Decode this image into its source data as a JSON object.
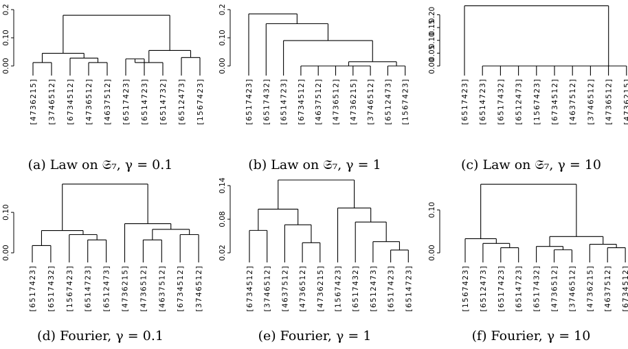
{
  "colors": {
    "red": "#c0141e",
    "green": "#22a020",
    "black": "#000000"
  },
  "chart_data": [
    {
      "type": "dendrogram",
      "caption": "(a) Law on 𝔖₇, γ = 0.1",
      "ylim": [
        0,
        0.2
      ],
      "yticks": [
        0.0,
        0.1,
        0.2
      ],
      "ytick_labels": [
        "0.00",
        "0.10",
        "0.2"
      ],
      "leaves": [
        "[4736215]",
        "[3746512]",
        "[6734512]",
        "[4736512]",
        "[4637512]",
        "[6517423]",
        "[6514723]",
        "[6514732]",
        "[6512473]",
        "[1567423]"
      ],
      "leaf_colors": [
        "red",
        "red",
        "red",
        "red",
        "red",
        "green",
        "green",
        "green",
        "green",
        "green"
      ],
      "merges": [
        [
          -1,
          -2,
          0.012
        ],
        [
          -4,
          -5,
          0.012
        ],
        [
          -3,
          2,
          0.028
        ],
        [
          1,
          3,
          0.045
        ],
        [
          -6,
          -7,
          0.025
        ],
        [
          -8,
          5,
          0.012
        ],
        [
          -9,
          -10,
          0.03
        ],
        [
          6,
          7,
          0.055
        ],
        [
          4,
          8,
          0.18
        ]
      ]
    },
    {
      "type": "dendrogram",
      "caption": "(b) Law on 𝔖₇, γ = 1",
      "ylim": [
        0,
        0.2
      ],
      "yticks": [
        0.0,
        0.1,
        0.2
      ],
      "ytick_labels": [
        "0.00",
        "0.10",
        "0.2"
      ],
      "leaves": [
        "[6517423]",
        "[6517432]",
        "[6514723]",
        "[6734512]",
        "[4637512]",
        "[4736512]",
        "[4736215]",
        "[3746512]",
        "[6512473]",
        "[1567423]"
      ],
      "leaf_colors": [
        "green",
        "green",
        "green",
        "red",
        "red",
        "red",
        "red",
        "red",
        "green",
        "green"
      ],
      "merges": [
        [
          -4,
          -5,
          0.0
        ],
        [
          -6,
          -7,
          0.0
        ],
        [
          1,
          2,
          0.0
        ],
        [
          -8,
          3,
          0.0
        ],
        [
          -9,
          -10,
          0.0
        ],
        [
          4,
          5,
          0.015
        ],
        [
          -3,
          6,
          0.09
        ],
        [
          -2,
          7,
          0.15
        ],
        [
          -1,
          8,
          0.185
        ]
      ]
    },
    {
      "type": "dendrogram",
      "caption": "(c) Law on 𝔖₇, γ = 10",
      "ylim": [
        0,
        0.22
      ],
      "yticks": [
        0.0,
        0.05,
        0.1,
        0.15,
        0.2
      ],
      "ytick_labels": [
        "0.00",
        "0.05",
        "0.10",
        "0.15",
        "0.20"
      ],
      "leaves": [
        "[6517423]",
        "[6514723]",
        "[6517432]",
        "[6512473]",
        "[1567423]",
        "[6734512]",
        "[4637512]",
        "[3746512]",
        "[4736512]",
        "[4736215]"
      ],
      "leaf_colors": [
        "green",
        "green",
        "green",
        "green",
        "green",
        "red",
        "red",
        "red",
        "red",
        "red"
      ],
      "merges": [
        [
          -2,
          -3,
          0.0
        ],
        [
          1,
          -4,
          0.0
        ],
        [
          2,
          -5,
          0.0
        ],
        [
          3,
          -6,
          0.0
        ],
        [
          4,
          -7,
          0.0
        ],
        [
          5,
          -8,
          0.0
        ],
        [
          6,
          -9,
          0.0
        ],
        [
          7,
          -10,
          0.0
        ],
        [
          -1,
          8,
          0.235
        ]
      ]
    },
    {
      "type": "dendrogram",
      "caption": "(d) Fourier, γ = 0.1",
      "ylim": [
        0,
        0.18
      ],
      "yticks": [
        0.0,
        0.1
      ],
      "ytick_labels": [
        "0.00",
        "0.10"
      ],
      "leaves": [
        "[6517423]",
        "[6517432]",
        "[1567423]",
        "[6514723]",
        "[6512473]",
        "[4736215]",
        "[4736512]",
        "[4637512]",
        "[6734512]",
        "[3746512]"
      ],
      "leaf_colors": [
        "green",
        "green",
        "red",
        "green",
        "green",
        "red",
        "red",
        "red",
        "red",
        "red"
      ],
      "merges": [
        [
          -1,
          -2,
          0.018
        ],
        [
          -4,
          -5,
          0.032
        ],
        [
          -3,
          2,
          0.045
        ],
        [
          1,
          3,
          0.055
        ],
        [
          -7,
          -8,
          0.032
        ],
        [
          -9,
          -10,
          0.045
        ],
        [
          5,
          6,
          0.058
        ],
        [
          -6,
          7,
          0.072
        ],
        [
          4,
          8,
          0.17
        ]
      ]
    },
    {
      "type": "dendrogram",
      "caption": "(e) Fourier, γ = 1",
      "ylim": [
        0.02,
        0.15
      ],
      "yticks": [
        0.02,
        0.08,
        0.14
      ],
      "ytick_labels": [
        "0.02",
        "0.08",
        "0.14"
      ],
      "leaves": [
        "[6734512]",
        "[3746512]",
        "[4637512]",
        "[4736512]",
        "[4736215]",
        "[1567423]",
        "[6517432]",
        "[6512473]",
        "[6517423]",
        "[6514723]"
      ],
      "leaf_colors": [
        "red",
        "red",
        "red",
        "red",
        "red",
        "green",
        "green",
        "green",
        "green",
        "green"
      ],
      "merges": [
        [
          -1,
          -2,
          0.06
        ],
        [
          -4,
          -5,
          0.038
        ],
        [
          -3,
          2,
          0.07
        ],
        [
          1,
          3,
          0.098
        ],
        [
          -9,
          -10,
          0.025
        ],
        [
          -8,
          5,
          0.04
        ],
        [
          -7,
          6,
          0.075
        ],
        [
          -6,
          7,
          0.1
        ],
        [
          4,
          8,
          0.15
        ]
      ]
    },
    {
      "type": "dendrogram",
      "caption": "(f) Fourier, γ = 10",
      "ylim": [
        0,
        0.17
      ],
      "yticks": [
        0.0,
        0.1
      ],
      "ytick_labels": [
        "0.00",
        "0.10"
      ],
      "leaves": [
        "[1567423]",
        "[6512473]",
        "[6517423]",
        "[6514723]",
        "[6517432]",
        "[4736512]",
        "[3746512]",
        "[4736215]",
        "[4637512]",
        "[6734512]"
      ],
      "leaf_colors": [
        "green",
        "green",
        "green",
        "green",
        "green",
        "red",
        "red",
        "red",
        "red",
        "red"
      ],
      "merges": [
        [
          -3,
          -4,
          0.012
        ],
        [
          -2,
          1,
          0.022
        ],
        [
          -1,
          2,
          0.033
        ],
        [
          -6,
          -7,
          0.007
        ],
        [
          -5,
          4,
          0.015
        ],
        [
          -9,
          -10,
          0.012
        ],
        [
          -8,
          6,
          0.02
        ],
        [
          5,
          7,
          0.038
        ],
        [
          3,
          8,
          0.16
        ]
      ]
    }
  ]
}
